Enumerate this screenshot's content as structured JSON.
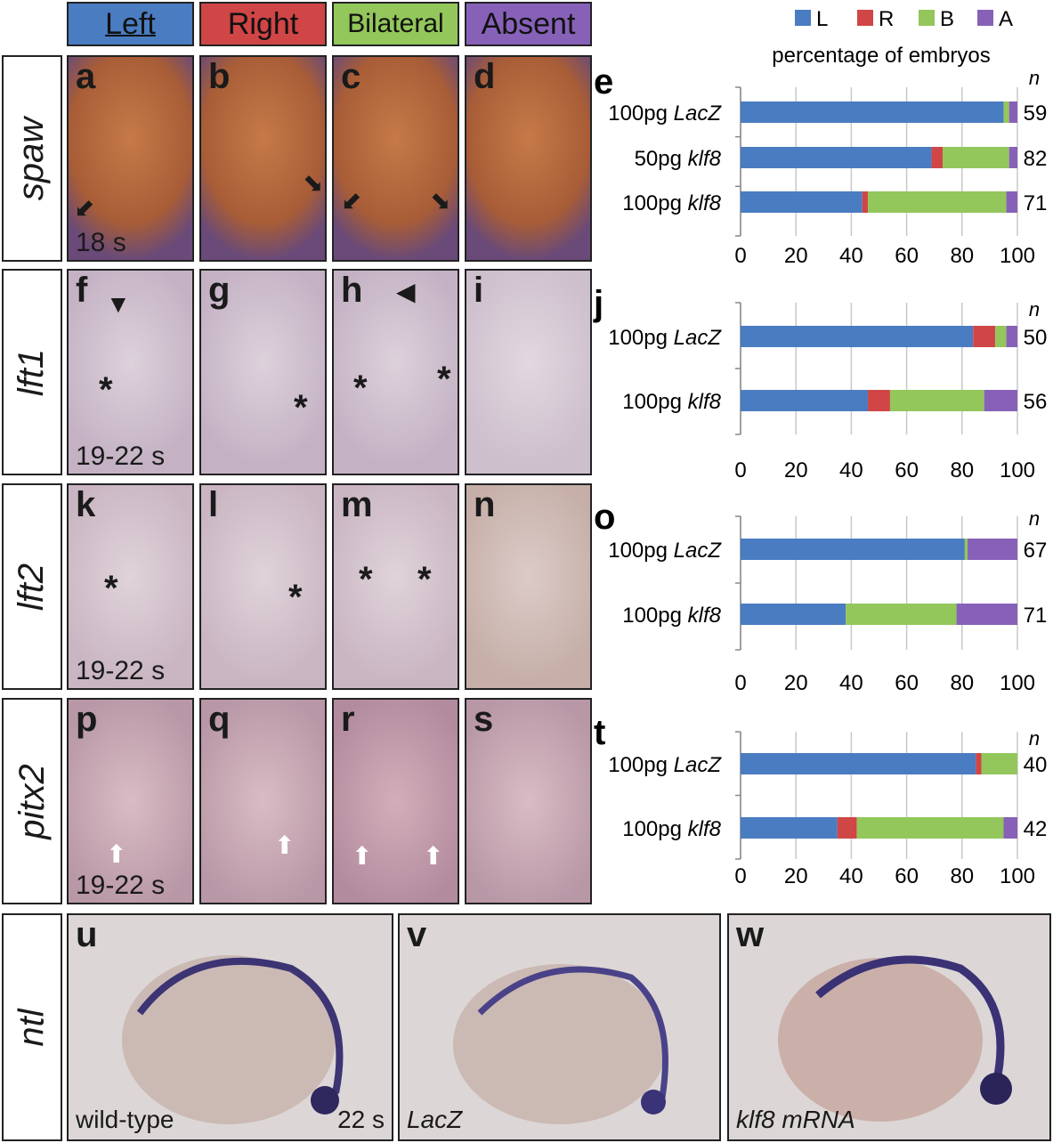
{
  "header": {
    "columns": [
      {
        "label": "Left",
        "color": "#4a7cc1"
      },
      {
        "label": "Right",
        "color": "#d04545"
      },
      {
        "label": "Bilateral",
        "color": "#93c65b"
      },
      {
        "label": "Absent",
        "color": "#8761b8"
      }
    ]
  },
  "rows": [
    {
      "gene": "spaw",
      "stage": "18 s",
      "letters": [
        "a",
        "b",
        "c",
        "d"
      ]
    },
    {
      "gene": "lft1",
      "stage": "19-22 s",
      "letters": [
        "f",
        "g",
        "h",
        "i"
      ]
    },
    {
      "gene": "lft2",
      "stage": "19-22 s",
      "letters": [
        "k",
        "l",
        "m",
        "n"
      ]
    },
    {
      "gene": "pitx2",
      "stage": "19-22 s",
      "letters": [
        "p",
        "q",
        "r",
        "s"
      ]
    }
  ],
  "ntl_row": {
    "gene": "ntl",
    "panels": [
      {
        "letter": "u",
        "caption": "wild-type",
        "stage": "22 s"
      },
      {
        "letter": "v",
        "caption": "LacZ"
      },
      {
        "letter": "w",
        "caption": "klf8 mRNA"
      }
    ]
  },
  "legend": {
    "items": [
      {
        "key": "L",
        "color": "#4a7cc1"
      },
      {
        "key": "R",
        "color": "#d04545"
      },
      {
        "key": "B",
        "color": "#93c65b"
      },
      {
        "key": "A",
        "color": "#8761b8"
      }
    ],
    "subtitle": "percentage of embryos"
  },
  "chart_data": [
    {
      "type": "bar",
      "stacked": true,
      "orientation": "horizontal",
      "panel": "e",
      "categories": [
        "100pg LacZ",
        "50pg klf8",
        "100pg klf8"
      ],
      "n": [
        59,
        82,
        71
      ],
      "n_label": "n",
      "series": [
        {
          "name": "L",
          "values": [
            95,
            69,
            44
          ]
        },
        {
          "name": "R",
          "values": [
            0,
            4,
            2
          ]
        },
        {
          "name": "B",
          "values": [
            2,
            24,
            50
          ]
        },
        {
          "name": "A",
          "values": [
            3,
            3,
            4
          ]
        }
      ],
      "xlim": [
        0,
        100
      ],
      "xticks": [
        0,
        20,
        40,
        60,
        80,
        100
      ],
      "grid": true
    },
    {
      "type": "bar",
      "stacked": true,
      "orientation": "horizontal",
      "panel": "j",
      "categories": [
        "100pg LacZ",
        "100pg klf8"
      ],
      "n": [
        50,
        56
      ],
      "n_label": "n",
      "series": [
        {
          "name": "L",
          "values": [
            84,
            46
          ]
        },
        {
          "name": "R",
          "values": [
            8,
            8
          ]
        },
        {
          "name": "B",
          "values": [
            4,
            34
          ]
        },
        {
          "name": "A",
          "values": [
            4,
            12
          ]
        }
      ],
      "xlim": [
        0,
        100
      ],
      "xticks": [
        0,
        20,
        40,
        60,
        80,
        100
      ],
      "grid": true
    },
    {
      "type": "bar",
      "stacked": true,
      "orientation": "horizontal",
      "panel": "o",
      "categories": [
        "100pg LacZ",
        "100pg klf8"
      ],
      "n": [
        67,
        71
      ],
      "n_label": "n",
      "series": [
        {
          "name": "L",
          "values": [
            81,
            38
          ]
        },
        {
          "name": "R",
          "values": [
            0,
            0
          ]
        },
        {
          "name": "B",
          "values": [
            1,
            40
          ]
        },
        {
          "name": "A",
          "values": [
            18,
            22
          ]
        }
      ],
      "xlim": [
        0,
        100
      ],
      "xticks": [
        0,
        20,
        40,
        60,
        80,
        100
      ],
      "grid": true
    },
    {
      "type": "bar",
      "stacked": true,
      "orientation": "horizontal",
      "panel": "t",
      "categories": [
        "100pg LacZ",
        "100pg klf8"
      ],
      "n": [
        40,
        42
      ],
      "n_label": "n",
      "series": [
        {
          "name": "L",
          "values": [
            85,
            35
          ]
        },
        {
          "name": "R",
          "values": [
            2,
            7
          ]
        },
        {
          "name": "B",
          "values": [
            13,
            53
          ]
        },
        {
          "name": "A",
          "values": [
            0,
            5
          ]
        }
      ],
      "xlim": [
        0,
        100
      ],
      "xticks": [
        0,
        20,
        40,
        60,
        80,
        100
      ],
      "grid": true
    }
  ]
}
